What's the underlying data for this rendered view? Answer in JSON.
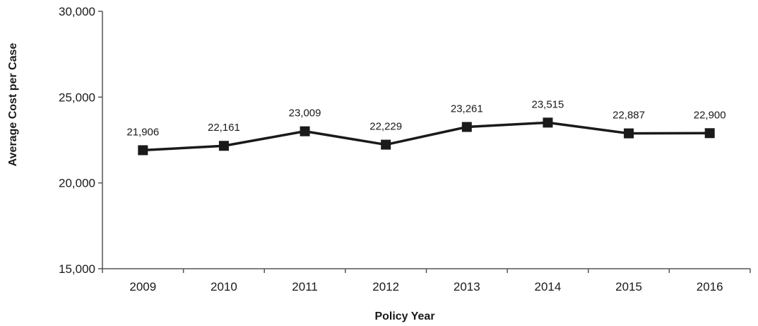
{
  "chart_data": {
    "type": "line",
    "categories": [
      "2009",
      "2010",
      "2011",
      "2012",
      "2013",
      "2014",
      "2015",
      "2016"
    ],
    "series": [
      {
        "values": [
          21906,
          22161,
          23009,
          22229,
          23261,
          23515,
          22887,
          22900
        ],
        "value_labels": [
          "21,906",
          "22,161",
          "23,009",
          "22,229",
          "23,261",
          "23,515",
          "22,887",
          "22,900"
        ]
      }
    ],
    "xlabel": "Policy Year",
    "ylabel": "Average Cost per Case",
    "ylim": [
      15000,
      30000
    ],
    "yticks": [
      15000,
      20000,
      25000,
      30000
    ],
    "ytick_labels": [
      "15,000",
      "20,000",
      "25,000",
      "30,000"
    ],
    "grid": false,
    "legend": "none",
    "marker": "square",
    "line_color": "#1a1a1a"
  }
}
